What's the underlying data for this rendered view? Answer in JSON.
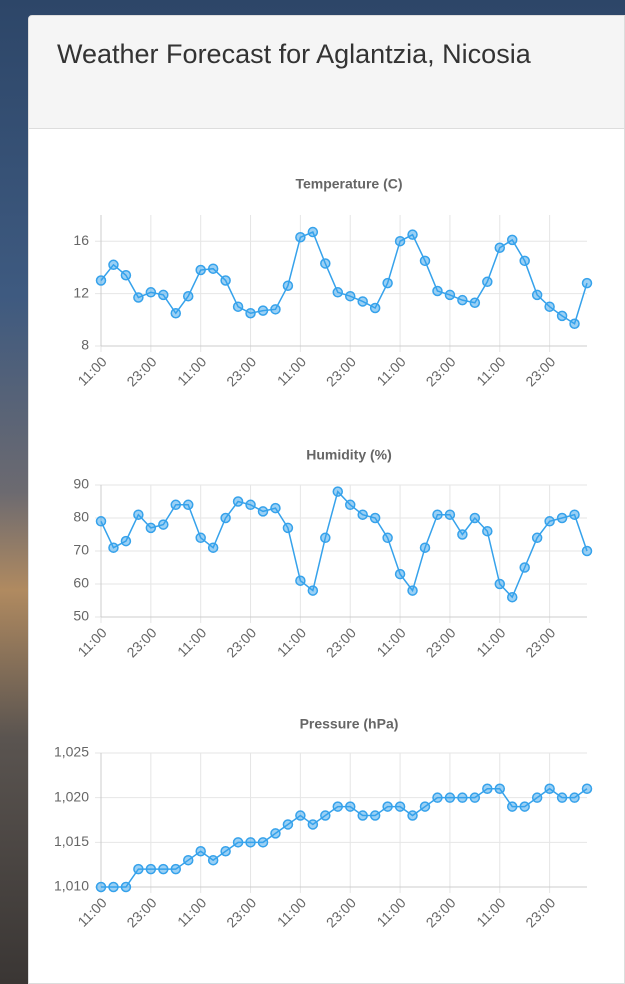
{
  "header": {
    "title": "Weather Forecast for Aglantzia, Nicosia"
  },
  "chart_data": [
    {
      "type": "line",
      "title": "Temperature (C)",
      "categories": [
        "11:00",
        null,
        null,
        null,
        "23:00",
        null,
        null,
        null,
        "11:00",
        null,
        null,
        null,
        "23:00",
        null,
        null,
        null,
        "11:00",
        null,
        null,
        null,
        "23:00",
        null,
        null,
        null,
        "11:00",
        null,
        null,
        null,
        "23:00",
        null,
        null,
        null,
        "11:00",
        null,
        null,
        null,
        "23:00",
        null,
        null,
        null
      ],
      "series": [
        {
          "name": "Temperature (C)",
          "color": "#36a2eb",
          "values": [
            13.0,
            14.2,
            13.4,
            11.7,
            12.1,
            11.9,
            10.5,
            11.8,
            13.8,
            13.9,
            13.0,
            11.0,
            10.5,
            10.7,
            10.8,
            12.6,
            16.3,
            16.7,
            14.3,
            12.1,
            11.8,
            11.4,
            10.9,
            12.8,
            16.0,
            16.5,
            14.5,
            12.2,
            11.9,
            11.5,
            11.3,
            12.9,
            15.5,
            16.1,
            14.5,
            11.9,
            11.0,
            10.3,
            9.7,
            12.8
          ]
        }
      ],
      "ylim": [
        8,
        18
      ],
      "yticks": [
        8,
        12,
        16
      ],
      "grid": true
    },
    {
      "type": "line",
      "title": "Humidity (%)",
      "categories": [
        "11:00",
        null,
        null,
        null,
        "23:00",
        null,
        null,
        null,
        "11:00",
        null,
        null,
        null,
        "23:00",
        null,
        null,
        null,
        "11:00",
        null,
        null,
        null,
        "23:00",
        null,
        null,
        null,
        "11:00",
        null,
        null,
        null,
        "23:00",
        null,
        null,
        null,
        "11:00",
        null,
        null,
        null,
        "23:00",
        null,
        null,
        null
      ],
      "series": [
        {
          "name": "Humidity (%)",
          "color": "#36a2eb",
          "values": [
            79,
            71,
            73,
            81,
            77,
            78,
            84,
            84,
            74,
            71,
            80,
            85,
            84,
            82,
            83,
            77,
            61,
            58,
            74,
            88,
            84,
            81,
            80,
            74,
            63,
            58,
            71,
            81,
            81,
            75,
            80,
            76,
            60,
            56,
            65,
            74,
            79,
            80,
            81,
            70
          ]
        }
      ],
      "ylim": [
        50,
        90
      ],
      "yticks": [
        50,
        60,
        70,
        80,
        90
      ],
      "grid": true
    },
    {
      "type": "line",
      "title": "Pressure (hPa)",
      "categories": [
        "11:00",
        null,
        null,
        null,
        "23:00",
        null,
        null,
        null,
        "11:00",
        null,
        null,
        null,
        "23:00",
        null,
        null,
        null,
        "11:00",
        null,
        null,
        null,
        "23:00",
        null,
        null,
        null,
        "11:00",
        null,
        null,
        null,
        "23:00",
        null,
        null,
        null,
        "11:00",
        null,
        null,
        null,
        "23:00",
        null,
        null,
        null
      ],
      "series": [
        {
          "name": "Pressure (hPa)",
          "color": "#36a2eb",
          "values": [
            1010,
            1010,
            1010,
            1012,
            1012,
            1012,
            1012,
            1013,
            1014,
            1013,
            1014,
            1015,
            1015,
            1015,
            1016,
            1017,
            1018,
            1017,
            1018,
            1019,
            1019,
            1018,
            1018,
            1019,
            1019,
            1018,
            1019,
            1020,
            1020,
            1020,
            1020,
            1021,
            1021,
            1019,
            1019,
            1020,
            1021,
            1020,
            1020,
            1021
          ]
        }
      ],
      "ylim": [
        1010,
        1025
      ],
      "yticks": [
        {
          "value": 1010,
          "label": "1,010"
        },
        {
          "value": 1015,
          "label": "1,015"
        },
        {
          "value": 1020,
          "label": "1,020"
        },
        {
          "value": 1025,
          "label": "1,025"
        }
      ],
      "grid": true
    }
  ]
}
